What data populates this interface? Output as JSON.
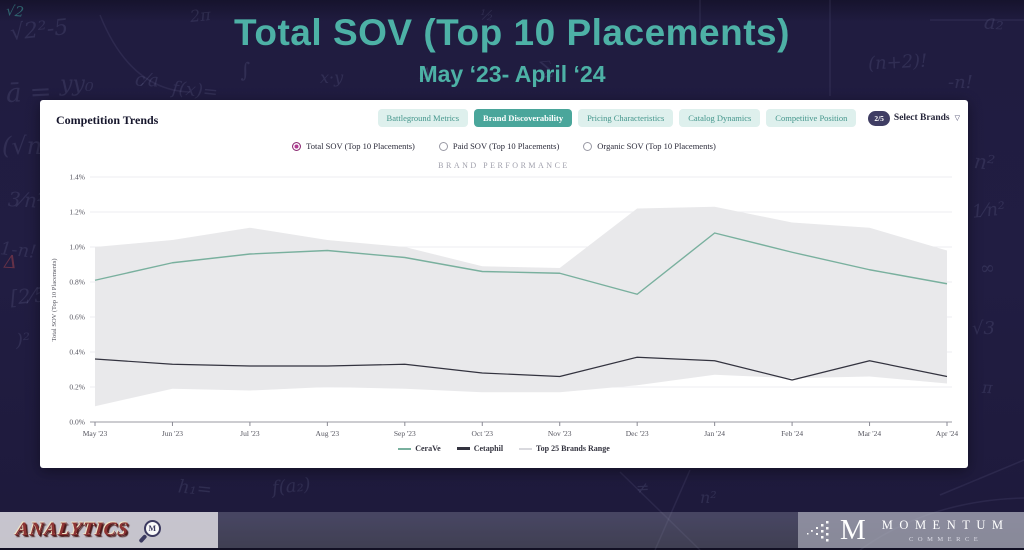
{
  "page": {
    "title": "Total SOV (Top 10 Placements)",
    "subtitle": "May ‘23- April ‘24"
  },
  "theme": {
    "background": "#211d42",
    "title_color": "#4db1a6",
    "active_tab_bg": "#4aa69b",
    "inactive_tab_bg": "#def0ed",
    "inactive_tab_text": "#44968c",
    "badge_bg": "#3f3d63",
    "radio_selected": "#b23a92",
    "cerave_color": "#79b09e",
    "cetaphil_color": "#33333f",
    "band_color": "#e9e9eb"
  },
  "panel": {
    "heading": "Competition Trends",
    "tabs": [
      {
        "label": "Battleground Metrics",
        "active": false
      },
      {
        "label": "Brand Discoverability",
        "active": true
      },
      {
        "label": "Pricing Characteristics",
        "active": false
      },
      {
        "label": "Catalog Dynamics",
        "active": false
      },
      {
        "label": "Competitive Position",
        "active": false
      }
    ],
    "brand_selector": {
      "badge": "2/5",
      "label": "Select Brands"
    },
    "metric_options": [
      {
        "label": "Total SOV (Top 10 Placements)",
        "selected": true
      },
      {
        "label": "Paid SOV (Top 10 Placements)",
        "selected": false
      },
      {
        "label": "Organic SOV (Top 10 Placements)",
        "selected": false
      }
    ],
    "section_label": "BRAND PERFORMANCE"
  },
  "chart_data": {
    "type": "line",
    "title": "BRAND PERFORMANCE",
    "xlabel": "",
    "ylabel": "Total SOV (Top 10 Placements)",
    "unit": "%",
    "ylim": [
      0,
      1.4
    ],
    "y_ticks": [
      "0.0%",
      "0.2%",
      "0.4%",
      "0.6%",
      "0.8%",
      "1.0%",
      "1.2%",
      "1.4%"
    ],
    "grid": true,
    "legend_position": "bottom",
    "categories": [
      "May '23",
      "Jun '23",
      "Jul '23",
      "Aug '23",
      "Sep '23",
      "Oct '23",
      "Nov '23",
      "Dec '23",
      "Jan '24",
      "Feb '24",
      "Mar '24",
      "Apr '24"
    ],
    "series": [
      {
        "name": "CeraVe",
        "type": "line",
        "color": "#79b09e",
        "values": [
          0.81,
          0.91,
          0.96,
          0.98,
          0.94,
          0.86,
          0.85,
          0.73,
          1.08,
          0.97,
          0.87,
          0.79
        ]
      },
      {
        "name": "Cetaphil",
        "type": "line",
        "color": "#33333f",
        "values": [
          0.36,
          0.33,
          0.32,
          0.32,
          0.33,
          0.28,
          0.26,
          0.37,
          0.35,
          0.24,
          0.35,
          0.26
        ]
      },
      {
        "name": "Top 25 Brands Range",
        "type": "band",
        "color": "#e9e9eb",
        "upper": [
          1.0,
          1.04,
          1.11,
          1.04,
          1.0,
          0.89,
          0.88,
          1.22,
          1.23,
          1.14,
          1.11,
          0.98
        ],
        "lower": [
          0.09,
          0.19,
          0.18,
          0.2,
          0.19,
          0.17,
          0.17,
          0.21,
          0.27,
          0.25,
          0.26,
          0.22
        ]
      }
    ]
  },
  "footer": {
    "analytics_label": "ANALYTICS",
    "magnifier_letter": "M",
    "momentum_monogram": "M",
    "momentum_title": "MOMENTUM",
    "momentum_subtitle": "COMMERCE"
  },
  "background_formulas": [
    "√2²-5",
    "ā =",
    "(√n",
    "3⁄n²",
    "1-n!",
    "[2⁄5",
    ")²",
    "yy₀",
    "c⁄a",
    "f(x)=",
    "2π",
    "∫",
    "x·y",
    "Δ",
    "½",
    "∑",
    "(n+2)!",
    "-n!",
    "a₂",
    "n²",
    "1⁄n²",
    "∞",
    "√3",
    "π",
    "h₁=",
    "f(a₂)",
    "≠",
    "n²",
    "Δ",
    "√2"
  ]
}
